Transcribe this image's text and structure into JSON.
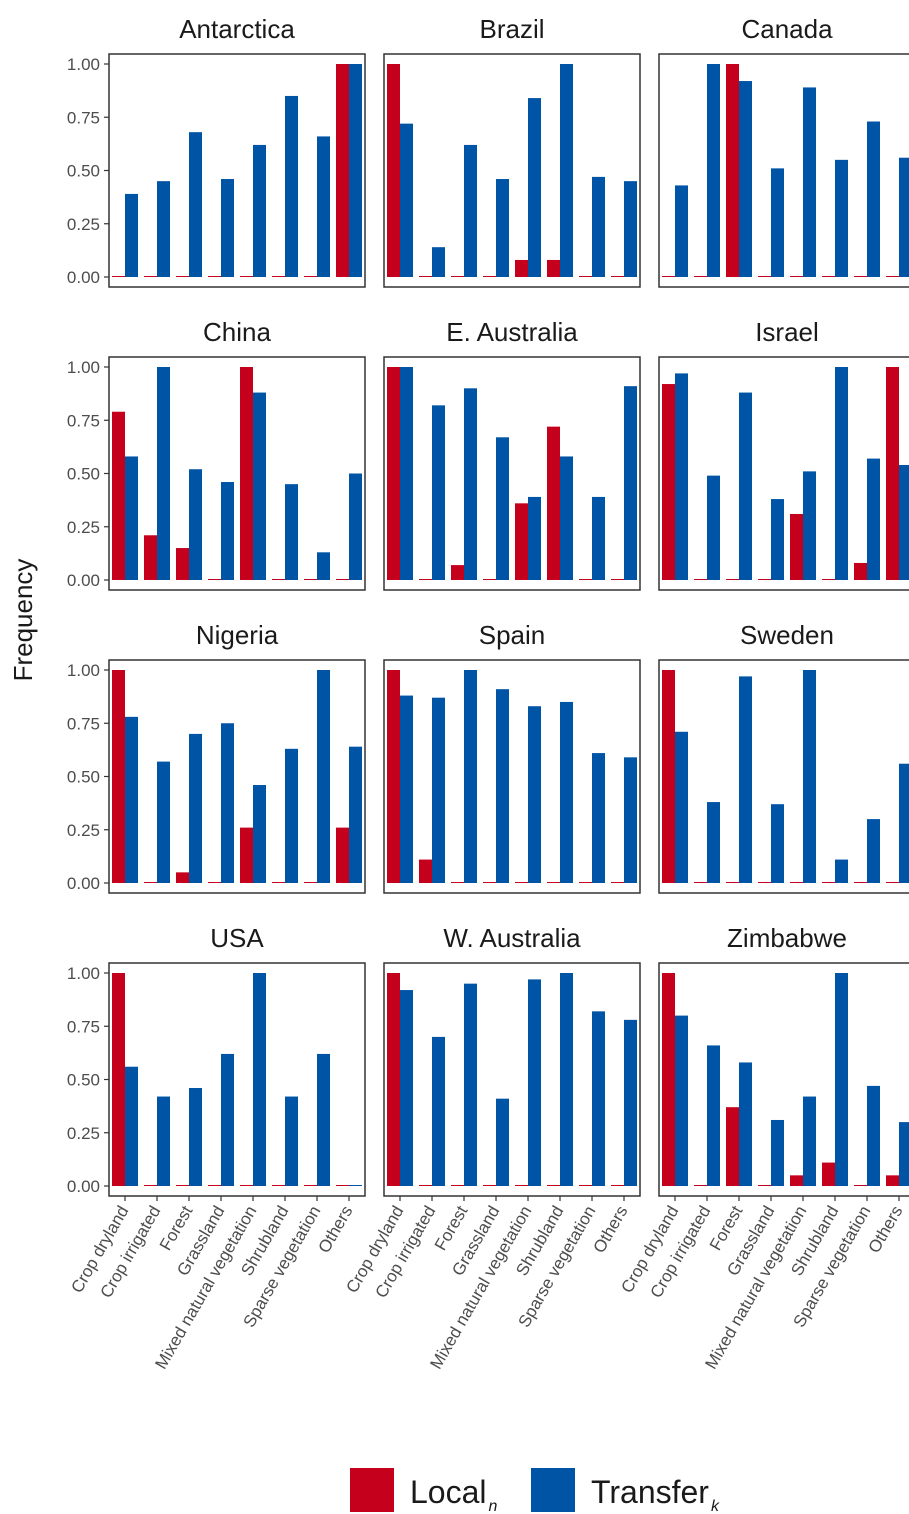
{
  "chart_data": {
    "type": "bar",
    "layout": "facet-grid",
    "ylabel": "Frequency",
    "ylim": [
      0,
      1
    ],
    "yticks": [
      "0.00",
      "0.25",
      "0.50",
      "0.75",
      "1.00"
    ],
    "categories": [
      "Crop dryland",
      "Crop irrigated",
      "Forest",
      "Grassland",
      "Mixed natural vegetation",
      "Shrubland",
      "Sparse vegetation",
      "Others"
    ],
    "legend": {
      "position": "bottom",
      "items": [
        {
          "name": "Local",
          "sub": "n",
          "color": "#C4001C"
        },
        {
          "name": "Transfer",
          "sub": "k",
          "color": "#0054A6"
        }
      ]
    },
    "panels": [
      {
        "title": "Antarctica",
        "local": [
          0,
          0,
          0,
          0,
          0,
          0,
          0,
          1.0
        ],
        "transfer": [
          0.39,
          0.45,
          0.68,
          0.46,
          0.62,
          0.85,
          0.66,
          1.0
        ]
      },
      {
        "title": "Brazil",
        "local": [
          1.0,
          0,
          0,
          0,
          0.08,
          0.08,
          0,
          0
        ],
        "transfer": [
          0.72,
          0.14,
          0.62,
          0.46,
          0.84,
          1.0,
          0.47,
          0.45
        ]
      },
      {
        "title": "Canada",
        "local": [
          0,
          0,
          1.0,
          0,
          0,
          0,
          0,
          0
        ],
        "transfer": [
          0.43,
          1.0,
          0.92,
          0.51,
          0.89,
          0.55,
          0.73,
          0.56
        ]
      },
      {
        "title": "China",
        "local": [
          0.79,
          0.21,
          0.15,
          0,
          1.0,
          0,
          0,
          0
        ],
        "transfer": [
          0.58,
          1.0,
          0.52,
          0.46,
          0.88,
          0.45,
          0.13,
          0.5
        ]
      },
      {
        "title": "E. Australia",
        "local": [
          1.0,
          0,
          0.07,
          0,
          0.36,
          0.72,
          0,
          0
        ],
        "transfer": [
          1.0,
          0.82,
          0.9,
          0.67,
          0.39,
          0.58,
          0.39,
          0.91
        ]
      },
      {
        "title": "Israel",
        "local": [
          0.92,
          0,
          0,
          0,
          0.31,
          0,
          0.08,
          1.0
        ],
        "transfer": [
          0.97,
          0.49,
          0.88,
          0.38,
          0.51,
          1.0,
          0.57,
          0.54
        ]
      },
      {
        "title": "Nigeria",
        "local": [
          1.0,
          0,
          0.05,
          0,
          0.26,
          0,
          0,
          0.26
        ],
        "transfer": [
          0.78,
          0.57,
          0.7,
          0.75,
          0.46,
          0.63,
          1.0,
          0.64
        ]
      },
      {
        "title": "Spain",
        "local": [
          1.0,
          0.11,
          0,
          0,
          0,
          0,
          0,
          0
        ],
        "transfer": [
          0.88,
          0.87,
          1.0,
          0.91,
          0.83,
          0.85,
          0.61,
          0.59
        ]
      },
      {
        "title": "Sweden",
        "local": [
          1.0,
          0,
          0,
          0,
          0,
          0,
          0,
          0
        ],
        "transfer": [
          0.71,
          0.38,
          0.97,
          0.37,
          1.0,
          0.11,
          0.3,
          0.56
        ]
      },
      {
        "title": "USA",
        "local": [
          1.0,
          0,
          0,
          0,
          0,
          0,
          0,
          0
        ],
        "transfer": [
          0.56,
          0.42,
          0.46,
          0.62,
          1.0,
          0.42,
          0.62,
          0
        ]
      },
      {
        "title": "W. Australia",
        "local": [
          1.0,
          0,
          0,
          0,
          0,
          0,
          0,
          0
        ],
        "transfer": [
          0.92,
          0.7,
          0.95,
          0.41,
          0.97,
          1.0,
          0.82,
          0.78
        ]
      },
      {
        "title": "Zimbabwe",
        "local": [
          1.0,
          0,
          0.37,
          0,
          0.05,
          0.11,
          0,
          0.05
        ],
        "transfer": [
          0.8,
          0.66,
          0.58,
          0.31,
          0.42,
          1.0,
          0.47,
          0.3
        ]
      }
    ]
  }
}
